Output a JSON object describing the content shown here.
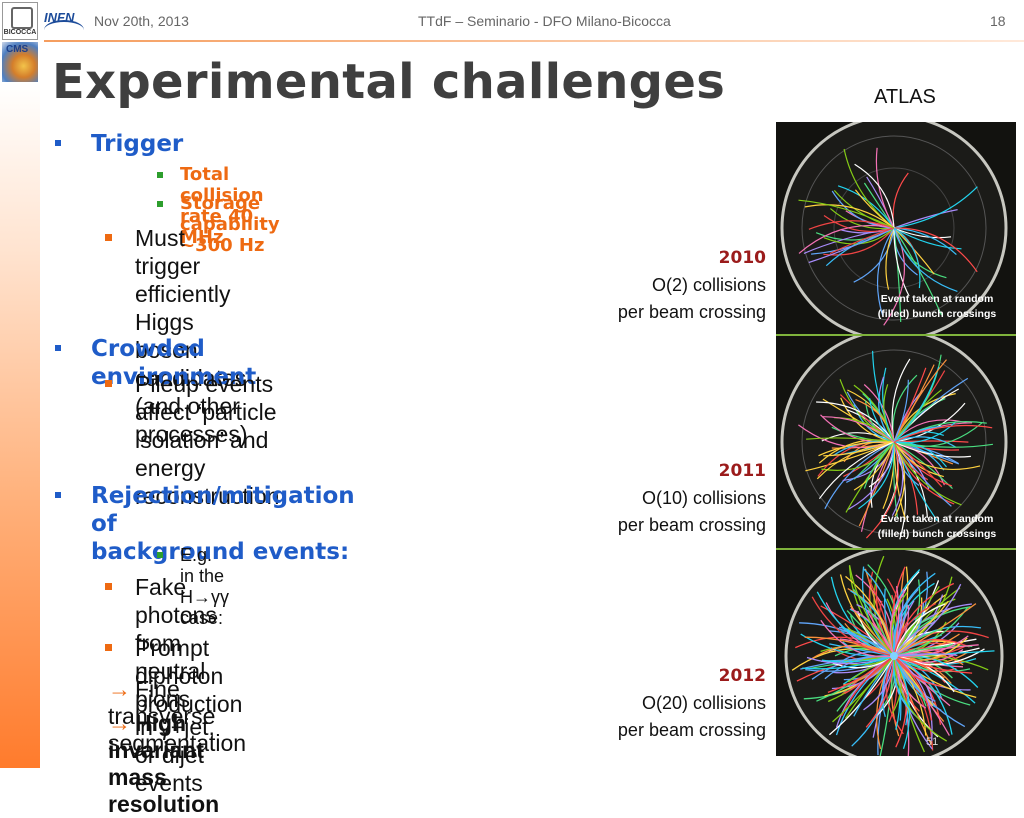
{
  "header": {
    "date": "Nov 20th, 2013",
    "center": "TTdF – Seminario - DFO Milano-Bicocca",
    "page": "18",
    "logos": {
      "bicocca": "BICOCCA",
      "infn": "INFN",
      "cms": "CMS"
    }
  },
  "title": "Experimental challenges",
  "atlas_label": "ATLAS",
  "bullets": {
    "trigger": "Trigger",
    "total_rate": "Total collision rate 40 MHz",
    "storage": "Storage capability ~300 Hz",
    "must_trigger_l1": "Must trigger efficiently Higgs",
    "must_trigger_l2": "boson candidates (and other",
    "must_trigger_l3": "processes)",
    "crowded": "Crowded environment",
    "pileup_l1": "Pileup events affect ‘particle",
    "pileup_l2": "isolation’ and energy",
    "pileup_l3": "reconstruction",
    "rejection_l1": "Rejection/mitigation of",
    "rejection_l2": "background events:",
    "eg_prefix": "E.g. in the H",
    "eg_arrow": "→",
    "eg_suffix": "γγ case:",
    "fake_l1": "Fake photons from neutral pions",
    "fake_l2": "in γ+jet, or dijet events",
    "prompt": "Prompt diphoton production",
    "arrow_glyph": "→",
    "fine": "Fine transverse segmentation",
    "high_mass": "High invariant mass resolution"
  },
  "years": [
    {
      "year": "2010",
      "line1": "O(2) collisions",
      "line2": "per beam crossing"
    },
    {
      "year": "2011",
      "line1": "O(10) collisions",
      "line2": "per beam crossing"
    },
    {
      "year": "2012",
      "line1": "O(20) collisions",
      "line2": "per beam crossing"
    }
  ],
  "panels": [
    {
      "caption_l1": "Event taken at random",
      "caption_l2": "(filled) bunch crossings"
    },
    {
      "caption_l1": "Event taken at random",
      "caption_l2": "(filled) bunch crossings"
    },
    {
      "corner_text": "51"
    }
  ],
  "colors": {
    "accent_blue": "#1f5cc8",
    "accent_orange": "#ee6a12",
    "year_red": "#9b1b1b",
    "bullet_green": "#2d9e2d",
    "title_gray": "#3f3f3f"
  }
}
